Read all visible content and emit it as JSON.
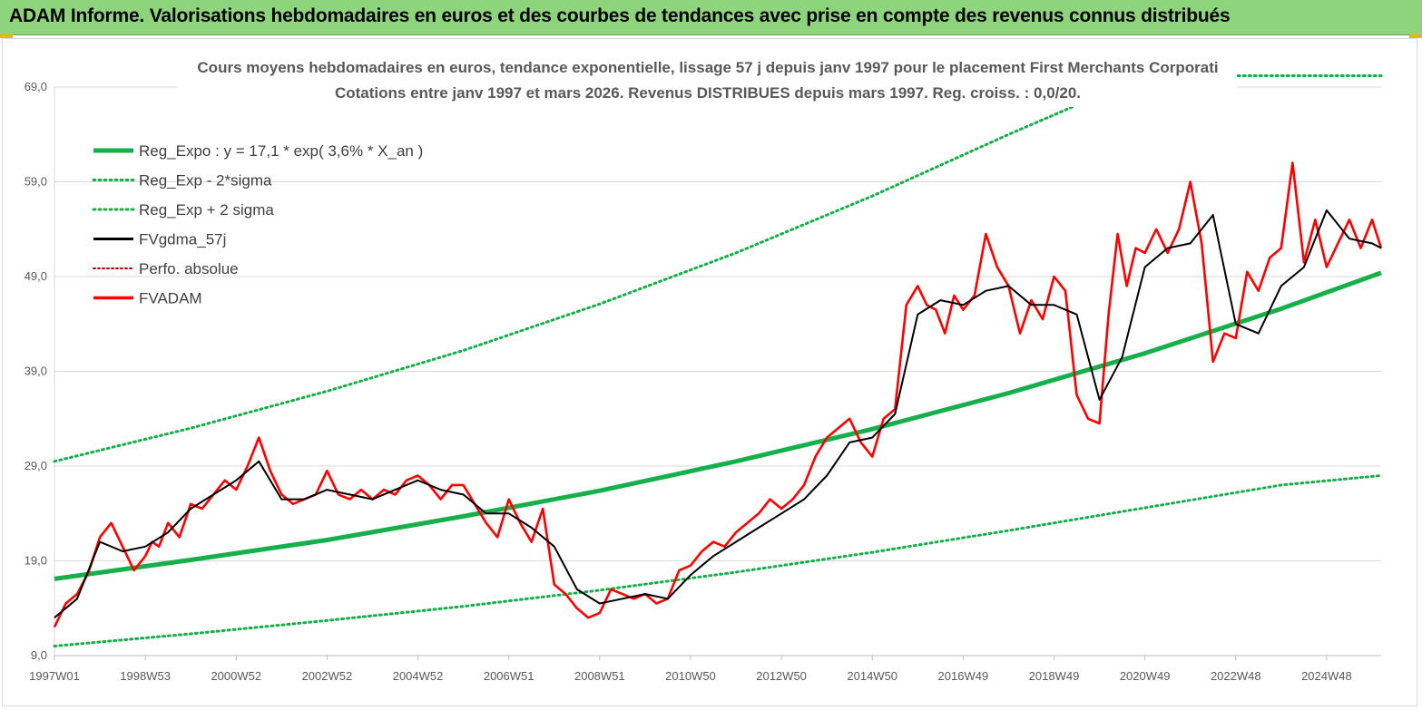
{
  "header": {
    "title": "ADAM Informe. Valorisations hebdomadaires en euros et des courbes de tendances avec prise en compte des revenus connus distribués"
  },
  "colors": {
    "banner": "#8dd47c",
    "trend": "#16b04a",
    "sigma": "#16b04a",
    "smooth": "#000000",
    "perf": "#c00000",
    "fvadam": "#ff0000",
    "grid": "#d9d9d9",
    "text": "#595959"
  },
  "chart_data": {
    "type": "line",
    "title_line1": "Cours moyens hebdomadaires en euros, tendance exponentielle, lissage 57 j depuis janv 1997  pour le placement First Merchants Corporati",
    "title_line2": "Cotations entre janv 1997 et mars 2026. Revenus DISTRIBUES depuis mars 1997. Reg. croiss. : 0,0/20.",
    "ylim": [
      9.0,
      69.0
    ],
    "yticks": [
      9.0,
      19.0,
      29.0,
      39.0,
      49.0,
      59.0,
      69.0
    ],
    "ytick_labels": [
      "9,0",
      "19,0",
      "29,0",
      "39,0",
      "49,0",
      "59,0",
      "69,0"
    ],
    "xlim": [
      1997.0,
      2026.2
    ],
    "xticks": [
      1997.0,
      1999.0,
      2001.0,
      2003.0,
      2005.0,
      2007.0,
      2009.0,
      2011.0,
      2013.0,
      2015.0,
      2017.0,
      2019.0,
      2021.0,
      2023.0,
      2025.0
    ],
    "xtick_labels": [
      "1997W01",
      "1998W53",
      "2000W52",
      "2002W52",
      "2004W52",
      "2006W51",
      "2008W51",
      "2010W50",
      "2012W50",
      "2014W50",
      "2016W49",
      "2018W49",
      "2020W49",
      "2022W48",
      "2024W48"
    ],
    "legend_position": "top-left",
    "legend": [
      "Reg_Expo : y = 17,1 * exp( 3,6% *  X_an )",
      "Reg_Exp - 2*sigma",
      "Reg_Exp + 2 sigma",
      "FVgdma_57j",
      "Perfo. absolue",
      "FVADAM"
    ],
    "trend": {
      "formula_a": 17.1,
      "formula_rate": 0.036,
      "x": [
        1997.0,
        2000.0,
        2003.0,
        2006.0,
        2009.0,
        2012.0,
        2015.0,
        2018.0,
        2021.0,
        2024.0,
        2026.2
      ],
      "reg_expo": [
        17.1,
        19.1,
        21.2,
        23.7,
        26.4,
        29.5,
        32.9,
        36.7,
        40.9,
        45.6,
        49.4
      ],
      "reg_exp_minus_2sigma": [
        10.0,
        11.3,
        12.7,
        14.2,
        15.9,
        17.8,
        19.9,
        22.2,
        24.6,
        27.0,
        28.0
      ],
      "reg_exp_plus_2sigma": [
        29.5,
        33.0,
        36.9,
        41.2,
        46.1,
        51.5,
        57.5,
        64.0,
        70.2,
        70.2,
        70.2
      ]
    },
    "series": [
      {
        "name": "FVADAM",
        "x": [
          1997.0,
          1997.25,
          1997.5,
          1997.75,
          1998.0,
          1998.25,
          1998.5,
          1998.75,
          1999.0,
          1999.15,
          1999.3,
          1999.5,
          1999.75,
          2000.0,
          2000.25,
          2000.5,
          2000.75,
          2001.0,
          2001.25,
          2001.5,
          2001.75,
          2002.0,
          2002.25,
          2002.5,
          2002.75,
          2003.0,
          2003.25,
          2003.5,
          2003.75,
          2004.0,
          2004.25,
          2004.5,
          2004.75,
          2005.0,
          2005.25,
          2005.5,
          2005.75,
          2006.0,
          2006.25,
          2006.5,
          2006.75,
          2007.0,
          2007.25,
          2007.5,
          2007.75,
          2008.0,
          2008.25,
          2008.5,
          2008.75,
          2009.0,
          2009.25,
          2009.5,
          2009.75,
          2010.0,
          2010.25,
          2010.5,
          2010.75,
          2011.0,
          2011.25,
          2011.5,
          2011.75,
          2012.0,
          2012.25,
          2012.5,
          2012.75,
          2013.0,
          2013.25,
          2013.5,
          2013.75,
          2014.0,
          2014.25,
          2014.5,
          2014.75,
          2015.0,
          2015.25,
          2015.5,
          2015.75,
          2016.0,
          2016.2,
          2016.4,
          2016.6,
          2016.8,
          2017.0,
          2017.25,
          2017.5,
          2017.75,
          2018.0,
          2018.25,
          2018.5,
          2018.75,
          2019.0,
          2019.25,
          2019.5,
          2019.75,
          2020.0,
          2020.2,
          2020.4,
          2020.6,
          2020.8,
          2021.0,
          2021.25,
          2021.5,
          2021.75,
          2022.0,
          2022.25,
          2022.5,
          2022.75,
          2023.0,
          2023.25,
          2023.5,
          2023.75,
          2024.0,
          2024.25,
          2024.5,
          2024.75,
          2025.0,
          2025.25,
          2025.5,
          2025.75,
          2026.0,
          2026.2
        ],
        "y": [
          12.0,
          14.5,
          15.5,
          17.8,
          21.5,
          23.0,
          20.5,
          18.0,
          19.5,
          21.0,
          20.5,
          23.0,
          21.5,
          25.0,
          24.5,
          26.0,
          27.5,
          26.5,
          29.0,
          32.0,
          28.5,
          26.0,
          25.0,
          25.5,
          26.0,
          28.5,
          26.0,
          25.5,
          26.5,
          25.5,
          26.5,
          26.0,
          27.5,
          28.0,
          27.0,
          25.5,
          27.0,
          27.0,
          25.0,
          23.0,
          21.5,
          25.5,
          23.0,
          21.0,
          24.5,
          16.5,
          15.5,
          14.0,
          13.0,
          13.5,
          16.0,
          15.5,
          15.0,
          15.5,
          14.5,
          15.0,
          18.0,
          18.5,
          20.0,
          21.0,
          20.5,
          22.0,
          23.0,
          24.0,
          25.5,
          24.5,
          25.5,
          27.0,
          30.0,
          32.0,
          33.0,
          34.0,
          31.5,
          30.0,
          34.0,
          35.0,
          46.0,
          48.0,
          46.0,
          45.5,
          43.0,
          47.0,
          45.5,
          47.0,
          53.5,
          50.0,
          48.0,
          43.0,
          46.5,
          44.5,
          49.0,
          47.5,
          36.5,
          34.0,
          33.5,
          45.0,
          53.5,
          48.0,
          52.0,
          51.5,
          54.0,
          51.5,
          54.0,
          59.0,
          52.5,
          40.0,
          43.0,
          42.5,
          49.5,
          47.5,
          51.0,
          52.0,
          61.0,
          50.5,
          55.0,
          50.0,
          52.5,
          55.0,
          52.0,
          55.0,
          52.0
        ],
        "color": "#ff0000"
      },
      {
        "name": "FVgdma_57j",
        "x": [
          1997.0,
          1997.5,
          1998.0,
          1998.5,
          1999.0,
          1999.5,
          2000.0,
          2000.5,
          2001.0,
          2001.5,
          2002.0,
          2002.5,
          2003.0,
          2003.5,
          2004.0,
          2004.5,
          2005.0,
          2005.5,
          2006.0,
          2006.5,
          2007.0,
          2007.5,
          2008.0,
          2008.5,
          2009.0,
          2009.5,
          2010.0,
          2010.5,
          2011.0,
          2011.5,
          2012.0,
          2012.5,
          2013.0,
          2013.5,
          2014.0,
          2014.5,
          2015.0,
          2015.5,
          2016.0,
          2016.5,
          2017.0,
          2017.5,
          2018.0,
          2018.5,
          2019.0,
          2019.5,
          2020.0,
          2020.5,
          2021.0,
          2021.5,
          2022.0,
          2022.5,
          2023.0,
          2023.5,
          2024.0,
          2024.5,
          2025.0,
          2025.5,
          2026.0,
          2026.2
        ],
        "y": [
          13.0,
          15.0,
          21.0,
          20.0,
          20.5,
          22.0,
          24.5,
          26.0,
          27.5,
          29.5,
          25.5,
          25.5,
          26.5,
          26.0,
          25.5,
          26.5,
          27.5,
          26.5,
          26.0,
          24.0,
          24.0,
          22.5,
          20.5,
          16.0,
          14.5,
          15.0,
          15.5,
          15.0,
          17.5,
          19.5,
          21.0,
          22.5,
          24.0,
          25.5,
          28.0,
          31.5,
          32.0,
          34.5,
          45.0,
          46.5,
          46.0,
          47.5,
          48.0,
          46.0,
          46.0,
          45.0,
          36.0,
          40.5,
          50.0,
          52.0,
          52.5,
          55.5,
          44.0,
          43.0,
          48.0,
          50.0,
          56.0,
          53.0,
          52.5,
          52.0
        ],
        "color": "#000000"
      }
    ]
  }
}
